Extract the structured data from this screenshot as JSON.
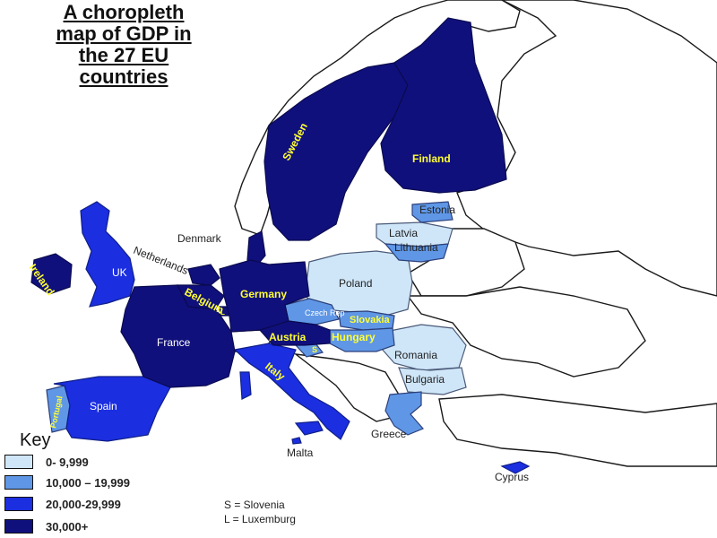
{
  "title_lines": [
    "A choropleth",
    "map of GDP in",
    "the 27 EU",
    "countries"
  ],
  "colors": {
    "class_0": "#cfe6f8",
    "class_1": "#5f97e6",
    "class_2": "#1b2ee0",
    "class_3": "#10107c",
    "non_eu": "#ffffff",
    "border": "#1a1a1a"
  },
  "legend": {
    "title": "Key",
    "items": [
      {
        "label": "0- 9,999",
        "color": "#cfe6f8"
      },
      {
        "label": "10,000 – 19,999",
        "color": "#5f97e6"
      },
      {
        "label": "20,000-29,999",
        "color": "#1b2ee0"
      },
      {
        "label": "30,000+",
        "color": "#10107c"
      }
    ]
  },
  "abbreviations": [
    "S = Slovenia",
    "L = Luxemburg"
  ],
  "countries": {
    "sweden": "Sweden",
    "finland": "Finland",
    "estonia": "Estonia",
    "latvia": "Latvia",
    "lithuania": "Lithuania",
    "denmark": "Denmark",
    "netherlands": "Netherlands",
    "ireland": "Ireland",
    "uk": "UK",
    "belgium": "Belgium",
    "germany": "Germany",
    "poland": "Poland",
    "czech": "Czech Rep",
    "slovakia": "Slovakia",
    "austria": "Austria",
    "hungary": "Hungary",
    "slovenia_abbr": "S",
    "luxembourg_abbr": "L",
    "france": "France",
    "romania": "Romania",
    "bulgaria": "Bulgaria",
    "italy": "Italy",
    "spain": "Spain",
    "portugal": "Portugal",
    "greece": "Greece",
    "malta": "Malta",
    "cyprus": "Cyprus"
  }
}
